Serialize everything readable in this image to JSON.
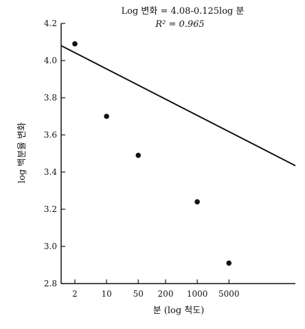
{
  "chart_data": {
    "type": "scatter",
    "annotation": {
      "equation": "Log 변화 = 4.08-0.125log 분",
      "r2": "R² = 0.965"
    },
    "xlabel": "분 (log 척도)",
    "ylabel": "log 백분율 변화",
    "x_scale": "log",
    "x_ticks": [
      {
        "value": 2,
        "label": "2"
      },
      {
        "value": 10,
        "label": "10"
      },
      {
        "value": 50,
        "label": "50"
      },
      {
        "value": 200,
        "label": "200"
      },
      {
        "value": 1000,
        "label": "1000"
      },
      {
        "value": 5000,
        "label": "5000"
      }
    ],
    "y_ticks": [
      {
        "value": 2.8,
        "label": "2.8"
      },
      {
        "value": 3.0,
        "label": "3.0"
      },
      {
        "value": 3.2,
        "label": "3.2"
      },
      {
        "value": 3.4,
        "label": "3.4"
      },
      {
        "value": 3.6,
        "label": "3.6"
      },
      {
        "value": 3.8,
        "label": "3.8"
      },
      {
        "value": 4.0,
        "label": "4.0"
      },
      {
        "value": 4.2,
        "label": "4.2"
      }
    ],
    "ylim": [
      2.8,
      4.2
    ],
    "xlim": [
      1.3,
      10000
    ],
    "points": [
      {
        "x": 2,
        "y": 4.09
      },
      {
        "x": 10,
        "y": 3.7
      },
      {
        "x": 50,
        "y": 3.49
      },
      {
        "x": 1000,
        "y": 3.24
      },
      {
        "x": 5000,
        "y": 2.91
      }
    ],
    "fit": {
      "intercept": 4.08,
      "slope": -0.125
    },
    "grid": false
  }
}
